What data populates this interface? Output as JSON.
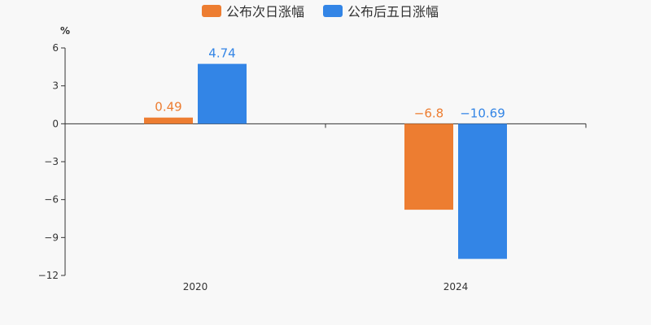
{
  "chart_data": {
    "type": "bar",
    "unit_label": "%",
    "categories": [
      "2020",
      "2024"
    ],
    "series": [
      {
        "name": "公布次日涨幅",
        "values": [
          0.49,
          -6.8
        ],
        "value_labels": [
          "0.49",
          "−6.8"
        ],
        "color": "#ed7d31"
      },
      {
        "name": "公布后五日涨幅",
        "values": [
          4.74,
          -10.69
        ],
        "value_labels": [
          "4.74",
          "−10.69"
        ],
        "color": "#3385e6"
      }
    ],
    "ylim": [
      -12,
      6
    ],
    "yticks": [
      6,
      3,
      0,
      -3,
      -6,
      -9,
      -12
    ],
    "ytick_labels": [
      "6",
      "3",
      "0",
      "−3",
      "−6",
      "−9",
      "−12"
    ],
    "legend_position": "top-center",
    "grid": false
  }
}
